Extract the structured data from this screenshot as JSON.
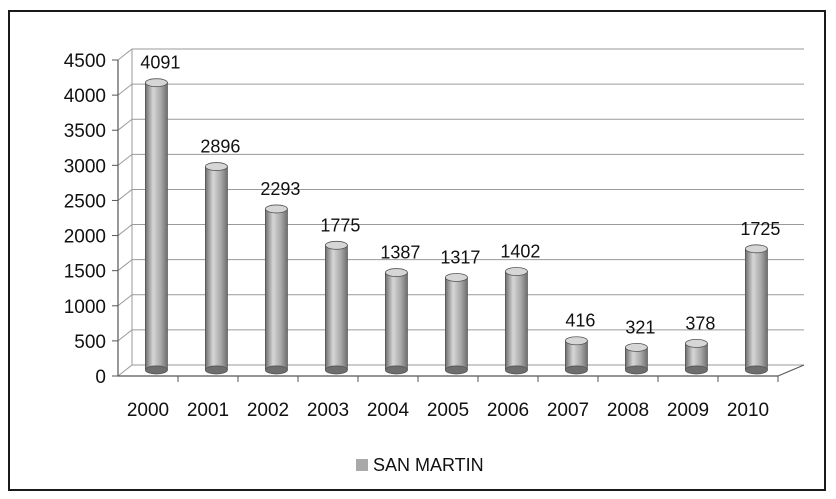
{
  "chart_data": {
    "type": "bar",
    "title": "",
    "xlabel": "",
    "ylabel": "",
    "categories": [
      "2000",
      "2001",
      "2002",
      "2003",
      "2004",
      "2005",
      "2006",
      "2007",
      "2008",
      "2009",
      "2010"
    ],
    "series": [
      {
        "name": "SAN MARTIN",
        "values": [
          4091,
          2896,
          2293,
          1775,
          1387,
          1317,
          1402,
          416,
          321,
          378,
          1725
        ]
      }
    ],
    "ylim": [
      0,
      4500
    ],
    "yticks": [
      0,
      500,
      1000,
      1500,
      2000,
      2500,
      3000,
      3500,
      4000,
      4500
    ],
    "grid": true,
    "legend_position": "bottom",
    "colors": {
      "bar": "#a9a9a9",
      "bar_dark": "#6e6e6e",
      "bar_light": "#d6d6d6",
      "grid": "#9a9a9a"
    }
  }
}
